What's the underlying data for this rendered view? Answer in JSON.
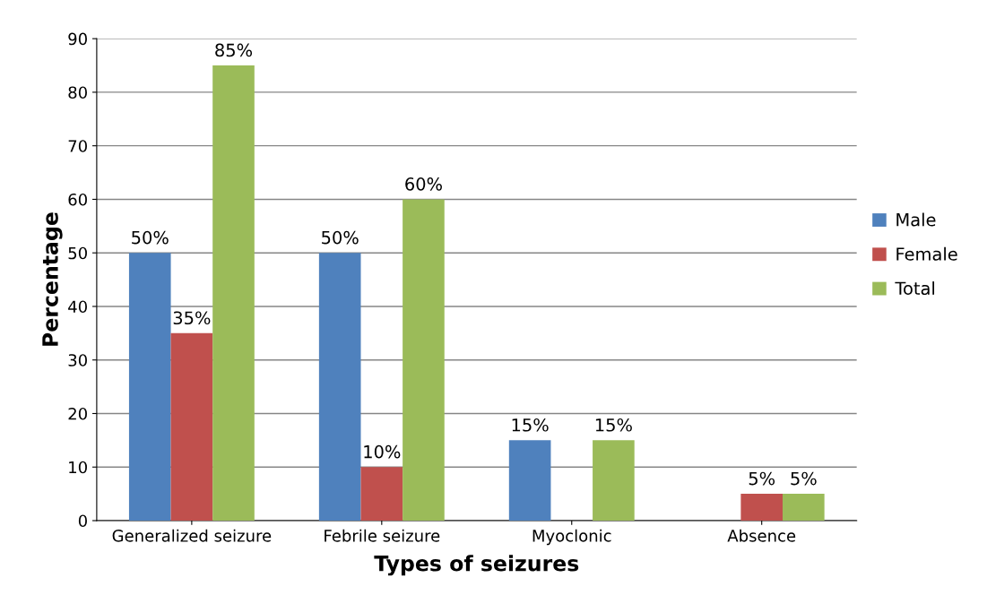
{
  "chart_data": {
    "type": "bar",
    "xlabel": "Types of seizures",
    "ylabel": "Percentage",
    "categories": [
      "Generalized seizure",
      "Febrile seizure",
      "Myoclonic",
      "Absence"
    ],
    "series": [
      {
        "name": "Male",
        "color": "#4f81bd",
        "values": [
          50,
          50,
          15,
          null
        ],
        "value_labels": [
          "50%",
          "50%",
          "15%",
          null
        ]
      },
      {
        "name": "Female",
        "color": "#c0504d",
        "values": [
          35,
          10,
          null,
          5
        ],
        "value_labels": [
          "35%",
          "10%",
          null,
          "5%"
        ]
      },
      {
        "name": "Total",
        "color": "#9bbb59",
        "values": [
          85,
          60,
          15,
          5
        ],
        "value_labels": [
          "85%",
          "60%",
          "15%",
          "5%"
        ]
      }
    ],
    "ylim": [
      0,
      90
    ],
    "yticks": [
      0,
      10,
      20,
      30,
      40,
      50,
      60,
      70,
      80,
      90
    ],
    "grid": "y",
    "legend": "right"
  }
}
